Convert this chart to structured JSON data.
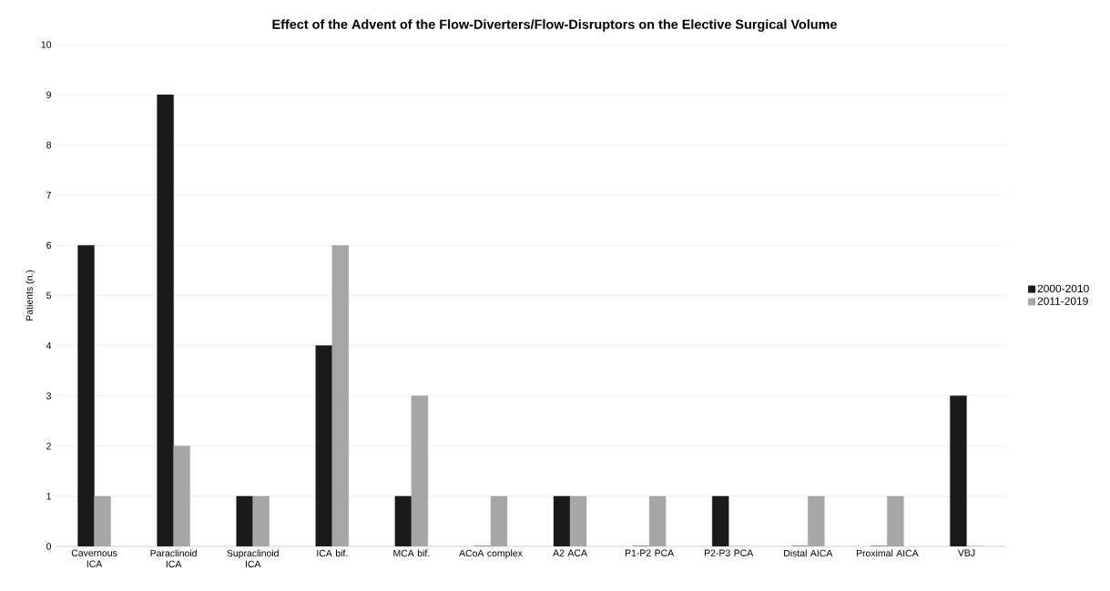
{
  "chart_data": {
    "type": "bar",
    "title": "Effect of the Advent of the Flow-Diverters/Flow-Disruptors on the Elective Surgical Volume",
    "ylabel": "Patients (n.)",
    "categories": [
      "Cavernous ICA",
      "Paraclinoid ICA",
      "Supraclinoid ICA",
      "ICA bif.",
      "MCA bif.",
      "ACoA complex",
      "A2 ACA",
      "P1-P2 PCA",
      "P2-P3 PCA",
      "Distal AICA",
      "Proximal AICA",
      "VBJ"
    ],
    "series": [
      {
        "name": "2000-2010",
        "color": "#1a1a1a",
        "values": [
          6,
          9,
          1,
          4,
          1,
          0,
          1,
          0,
          1,
          0,
          0,
          3
        ]
      },
      {
        "name": "2011-2019",
        "color": "#a6a6a6",
        "values": [
          1,
          2,
          1,
          6,
          3,
          1,
          1,
          1,
          0,
          1,
          1,
          0
        ]
      }
    ],
    "ylim": [
      0,
      10
    ],
    "yticks": [
      0,
      1,
      2,
      3,
      4,
      5,
      6,
      7,
      8,
      9,
      10
    ],
    "grid": "y",
    "legend": "right"
  }
}
